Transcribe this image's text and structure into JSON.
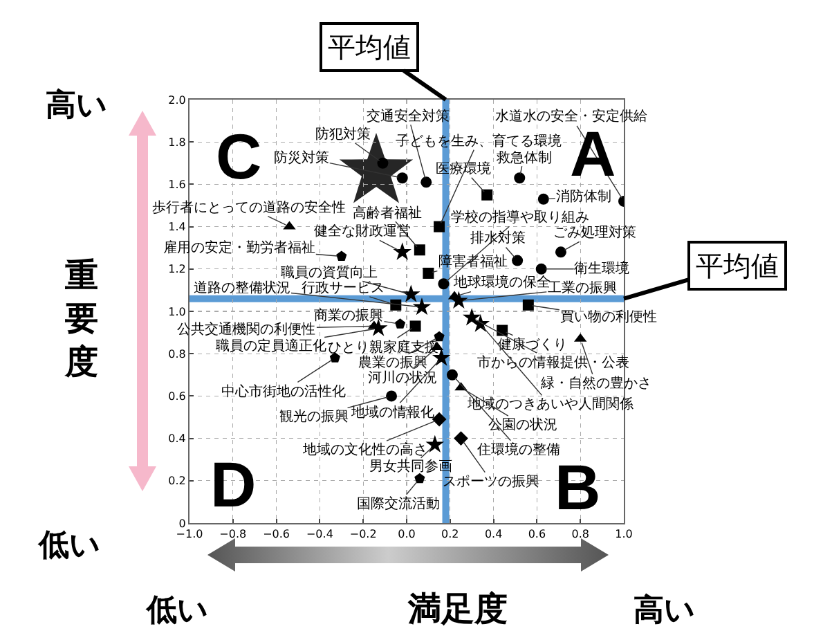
{
  "chart_data": {
    "type": "scatter",
    "xlabel": "満足度",
    "ylabel": "重要度",
    "xlim": [
      -1,
      1
    ],
    "ylim": [
      0,
      2
    ],
    "xticks": [
      {
        "value": -1,
        "label": "−1.0"
      },
      {
        "value": -0.8,
        "label": "−0.8"
      },
      {
        "value": -0.6,
        "label": "−0.6"
      },
      {
        "value": -0.4,
        "label": "−0.4"
      },
      {
        "value": -0.2,
        "label": "−0.2"
      },
      {
        "value": 0,
        "label": "0.0"
      },
      0.2,
      0.4,
      0.6,
      0.8,
      {
        "value": 1,
        "label": "1.0"
      }
    ],
    "yticks": [
      0,
      0.2,
      0.4,
      0.6,
      0.8,
      {
        "value": 1,
        "label": "1.0"
      },
      1.2,
      1.4,
      1.6,
      1.8,
      {
        "value": 2,
        "label": "2.0"
      }
    ],
    "grid": true,
    "series": [
      {
        "marker": "circle",
        "color": "#000000",
        "x": [
          0.09,
          -0.11,
          -0.02,
          0.17,
          0.52,
          0.63,
          1.0,
          0.51,
          0.71,
          0.62,
          -0.07,
          0.21
        ],
        "values": [
          1.61,
          1.7,
          1.63,
          1.13,
          1.63,
          1.53,
          1.52,
          1.24,
          1.28,
          1.2,
          0.6,
          0.7
        ]
      },
      {
        "marker": "square",
        "color": "#000000",
        "x": [
          0.06,
          0.1,
          0.15,
          0.37,
          -0.05,
          0.56,
          0.44,
          0.04
        ],
        "values": [
          1.29,
          1.18,
          1.4,
          1.55,
          1.03,
          1.03,
          0.91,
          0.93
        ]
      },
      {
        "marker": "star",
        "color": "#000000",
        "x": [
          -0.02,
          0.02,
          0.07,
          0.3,
          0.34,
          -0.13,
          0.16,
          0.13,
          0.24
        ],
        "values": [
          1.28,
          1.08,
          1.02,
          0.97,
          0.94,
          0.92,
          0.78,
          0.37,
          1.05
        ]
      },
      {
        "marker": "triangle",
        "color": "#000000",
        "x": [
          -0.54,
          0.22,
          0.8,
          0.25,
          -0.15,
          0.14
        ],
        "values": [
          1.4,
          1.07,
          0.87,
          0.64,
          0.93,
          0.83
        ]
      },
      {
        "color": "#000000",
        "x": [
          -0.3,
          -0.03,
          0.15,
          -0.33,
          0.06
        ],
        "values": [
          1.26,
          0.94,
          0.88,
          0.78,
          0.21
        ]
      },
      {
        "marker": "diamond",
        "color": "#000000",
        "x": [
          0.25,
          0.15
        ],
        "values": [
          0.4,
          0.49
        ]
      }
    ],
    "ref_lines": [
      {
        "axis": "x",
        "value": 0.18,
        "label": "平均値",
        "color": "#5b9bd5"
      },
      {
        "axis": "y",
        "value": 1.06,
        "label": "平均値",
        "color": "#5b9bd5"
      }
    ],
    "annotations": [
      {
        "text": "交通安全対策",
        "x": 0.09,
        "y": 1.61
      },
      {
        "text": "防犯対策",
        "x": -0.11,
        "y": 1.7
      },
      {
        "text": "防災対策",
        "x": -0.02,
        "y": 1.63
      },
      {
        "text": "高齢者福祉",
        "x": 0.06,
        "y": 1.29
      },
      {
        "text": "健全な財政運営",
        "x": -0.02,
        "y": 1.28
      },
      {
        "text": "歩行者にとっての道路の安全性",
        "x": -0.54,
        "y": 1.4
      },
      {
        "text": "雇用の安定・勤労者福祉",
        "x": -0.3,
        "y": 1.26
      },
      {
        "text": "障害者福祉",
        "x": 0.1,
        "y": 1.18
      },
      {
        "text": "職員の資質向上",
        "x": 0.02,
        "y": 1.08
      },
      {
        "text": "行政サービス",
        "x": -0.05,
        "y": 1.03
      },
      {
        "text": "道路の整備状況",
        "x": 0.07,
        "y": 1.02
      },
      {
        "text": "子どもを生み、育てる環境",
        "x": 0.15,
        "y": 1.4
      },
      {
        "text": "水道水の安全・安定供給",
        "x": 1.0,
        "y": 1.52
      },
      {
        "text": "医療環境",
        "x": 0.37,
        "y": 1.55
      },
      {
        "text": "救急体制",
        "x": 0.52,
        "y": 1.63
      },
      {
        "text": "消防体制",
        "x": 0.63,
        "y": 1.53
      },
      {
        "text": "学校の指導や取り組み",
        "x": 0.17,
        "y": 1.13
      },
      {
        "text": "排水対策",
        "x": 0.51,
        "y": 1.24
      },
      {
        "text": "ごみ処理対策",
        "x": 0.71,
        "y": 1.28
      },
      {
        "text": "衛生環境",
        "x": 0.62,
        "y": 1.2
      },
      {
        "text": "地球環境の保全",
        "x": 0.22,
        "y": 1.07
      },
      {
        "text": "工業の振興",
        "x": 0.24,
        "y": 1.05
      },
      {
        "text": "買い物の利便性",
        "x": 0.56,
        "y": 1.03
      },
      {
        "text": "市からの情報提供・公表",
        "x": 0.3,
        "y": 0.97
      },
      {
        "text": "健康づくり",
        "x": 0.44,
        "y": 0.91
      },
      {
        "text": "緑・自然の豊かさ",
        "x": 0.8,
        "y": 0.87
      },
      {
        "text": "地域のつきあいや人間関係",
        "x": 0.34,
        "y": 0.94
      },
      {
        "text": "公園の状況",
        "x": 0.25,
        "y": 0.64
      },
      {
        "text": "住環境の整備",
        "x": 0.21,
        "y": 0.7
      },
      {
        "text": "スポーツの振興",
        "x": 0.25,
        "y": 0.4
      },
      {
        "text": "商業の振興",
        "x": -0.03,
        "y": 0.94
      },
      {
        "text": "公共交通機関の利便性",
        "x": -0.15,
        "y": 0.93
      },
      {
        "text": "職員の定員適正化",
        "x": -0.13,
        "y": 0.92
      },
      {
        "text": "ひとり親家庭支援",
        "x": 0.04,
        "y": 0.93
      },
      {
        "text": "農業の振興",
        "x": 0.15,
        "y": 0.88
      },
      {
        "text": "河川の状況",
        "x": 0.14,
        "y": 0.83
      },
      {
        "text": "地域の情報化",
        "x": 0.16,
        "y": 0.78
      },
      {
        "text": "中心市街地の活性化",
        "x": -0.33,
        "y": 0.78
      },
      {
        "text": "観光の振興",
        "x": -0.07,
        "y": 0.6
      },
      {
        "text": "地域の文化性の高さ",
        "x": 0.15,
        "y": 0.49
      },
      {
        "text": "男女共同参画",
        "x": 0.13,
        "y": 0.37
      },
      {
        "text": "国際交流活動",
        "x": 0.06,
        "y": 0.21
      },
      "A",
      "B",
      "C",
      "D",
      "高い",
      "低い",
      "低い",
      "高い"
    ]
  }
}
